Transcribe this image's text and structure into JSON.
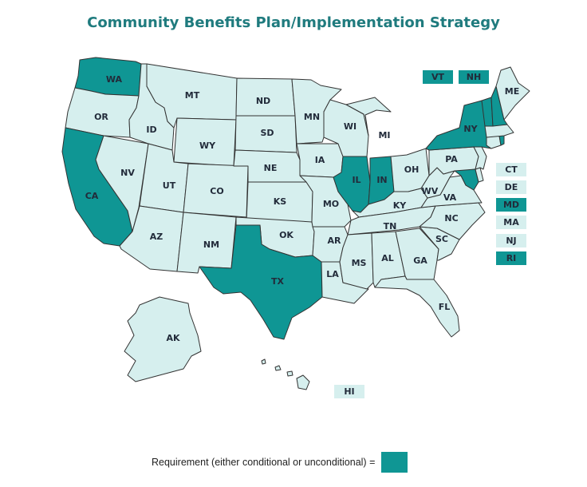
{
  "title": "Community Benefits Plan/Implementation Strategy",
  "colors": {
    "requirement": "#0f9694",
    "none": "#d6efee",
    "border": "#333333",
    "title": "#1f7b7e"
  },
  "states": {
    "WA": true,
    "OR": false,
    "CA": true,
    "NV": false,
    "ID": false,
    "MT": false,
    "WY": false,
    "UT": false,
    "AZ": false,
    "CO": false,
    "NM": false,
    "ND": false,
    "SD": false,
    "NE": false,
    "KS": false,
    "OK": false,
    "TX": true,
    "MN": false,
    "IA": false,
    "MO": false,
    "AR": false,
    "LA": false,
    "WI": false,
    "IL": true,
    "MI": false,
    "IN": true,
    "OH": false,
    "KY": false,
    "TN": false,
    "MS": false,
    "AL": false,
    "GA": false,
    "FL": false,
    "SC": false,
    "NC": false,
    "VA": false,
    "WV": false,
    "PA": false,
    "NY": true,
    "ME": false,
    "AK": false,
    "HI": false,
    "VT": true,
    "NH": true,
    "CT": false,
    "DE": false,
    "MD": true,
    "MA": false,
    "NJ": false,
    "RI": true
  },
  "small_state_boxes": [
    "VT",
    "NH",
    "CT",
    "DE",
    "MD",
    "MA",
    "NJ",
    "RI",
    "HI"
  ],
  "legend": {
    "label": "Requirement (either conditional or unconditional) ="
  }
}
